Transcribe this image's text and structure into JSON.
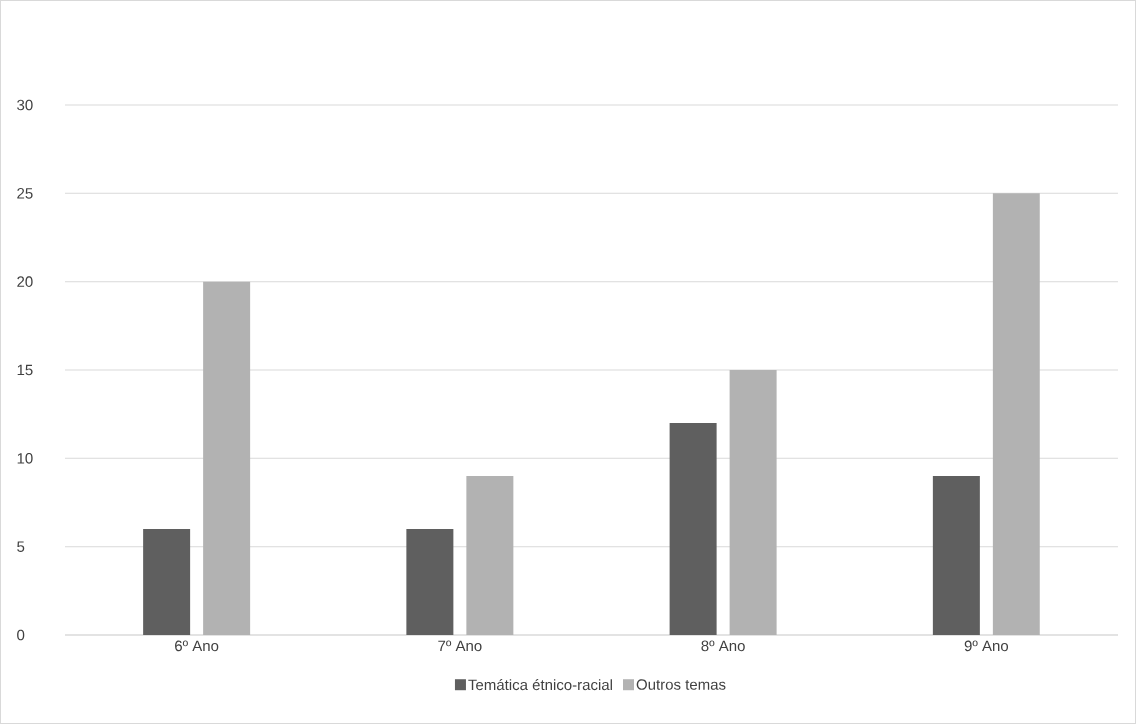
{
  "chart_data": {
    "type": "bar",
    "categories": [
      "6º Ano",
      "7º Ano",
      "8º Ano",
      "9º Ano"
    ],
    "series": [
      {
        "name": "Temática étnico-racial",
        "color": "#5f5f5f",
        "values": [
          6,
          6,
          12,
          9
        ]
      },
      {
        "name": "Outros temas",
        "color": "#b2b2b2",
        "values": [
          20,
          9,
          15,
          25
        ]
      }
    ],
    "ylim": [
      0,
      30
    ],
    "yticks": [
      0,
      5,
      10,
      15,
      20,
      25,
      30
    ],
    "grid": "y",
    "legend": "bottom"
  }
}
